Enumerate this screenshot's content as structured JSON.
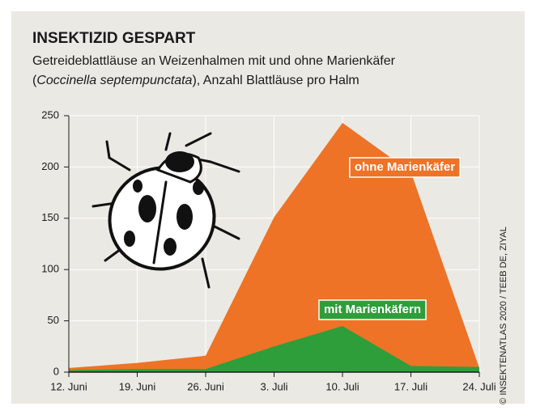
{
  "chart_data": {
    "type": "area",
    "title": "INSEKTIZID GESPART",
    "subtitle": [
      "Getreideblattläuse an Weizenhalmen mit und ohne Marienkäfer",
      [
        "(",
        "Coccinella septempunctata",
        "), Anzahl Blattläuse pro Halm"
      ]
    ],
    "credit": "© INSEKTENATLAS 2020 / TEEB DE, ZIYAL",
    "categories": [
      "12. Juni",
      "19. Juni",
      "26. Juni",
      "3. Juli",
      "10. Juli",
      "17. Juli",
      "24. Juli"
    ],
    "series": [
      {
        "name": "ohne Marienkäfer",
        "color": "#ee7326",
        "values": [
          4,
          9,
          16,
          151,
          243,
          195,
          4
        ]
      },
      {
        "name": "mit Marienkäfern",
        "color": "#2e9e3a",
        "values": [
          2,
          3,
          3,
          25,
          45,
          6,
          5
        ]
      }
    ],
    "ylim": [
      0,
      250
    ],
    "yticks": [
      0,
      50,
      100,
      150,
      200,
      250
    ],
    "grid": true
  }
}
